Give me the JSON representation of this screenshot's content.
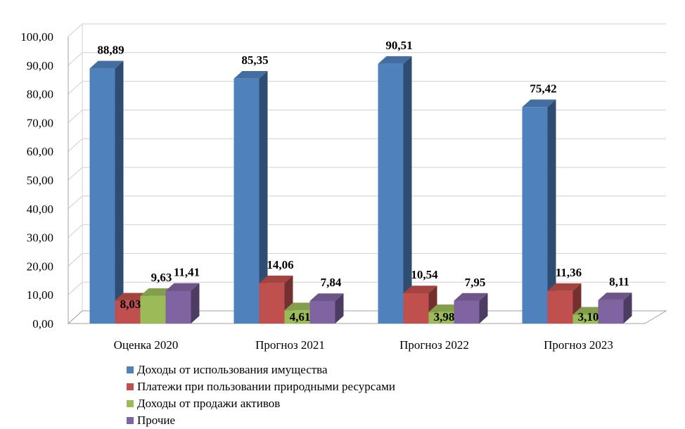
{
  "chart_data": {
    "type": "bar",
    "title": "",
    "xlabel": "",
    "ylabel": "",
    "ylim": [
      0,
      100
    ],
    "y_ticks": [
      "0,00",
      "10,00",
      "20,00",
      "30,00",
      "40,00",
      "50,00",
      "60,00",
      "70,00",
      "80,00",
      "90,00",
      "100,00"
    ],
    "categories": [
      "Оценка 2020",
      "Прогноз 2021",
      "Прогноз 2022",
      "Прогноз 2023"
    ],
    "series": [
      {
        "name": "Доходы от использования имущества",
        "color": "#4f81bd",
        "values": [
          88.89,
          85.35,
          90.51,
          75.42
        ],
        "labels": [
          "88,89",
          "85,35",
          "90,51",
          "75,42"
        ]
      },
      {
        "name": "Платежи при пользовании природными ресурсами",
        "color": "#c0504d",
        "values": [
          8.03,
          14.06,
          10.54,
          11.36
        ],
        "labels": [
          "8,03",
          "14,06",
          "10,54",
          "11,36"
        ]
      },
      {
        "name": "Доходы от продажи активов",
        "color": "#9bbb59",
        "values": [
          9.63,
          4.61,
          3.98,
          3.1
        ],
        "labels": [
          "9,63",
          "4,61",
          "3,98",
          "3,10"
        ]
      },
      {
        "name": "Прочие",
        "color": "#8064a2",
        "values": [
          11.41,
          7.84,
          7.95,
          8.11
        ],
        "labels": [
          "11,41",
          "7,84",
          "7,95",
          "8,11"
        ]
      }
    ],
    "grid": true,
    "legend_position": "bottom"
  }
}
